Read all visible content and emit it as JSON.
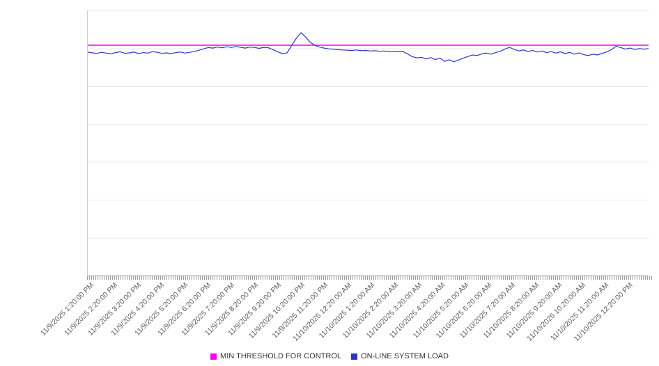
{
  "chart_data": {
    "type": "line",
    "title": "",
    "xlabel": "",
    "ylabel": "",
    "ylim": [
      0,
      100
    ],
    "grid": "horizontal",
    "legend_position": "bottom-center",
    "x_labels": [
      "11/9/2025 1:20:00 PM",
      "11/9/2025 2:20:00 PM",
      "11/9/2025 3:20:00 PM",
      "11/9/2025 4:20:00 PM",
      "11/9/2025 5:20:00 PM",
      "11/9/2025 6:20:00 PM",
      "11/9/2025 7:20:00 PM",
      "11/9/2025 8:20:00 PM",
      "11/9/2025 9:20:00 PM",
      "11/9/2025 10:20:00 PM",
      "11/9/2025 11:20:00 PM",
      "11/10/2025 12:20:00 AM",
      "11/10/2025 1:20:00 AM",
      "11/10/2025 2:20:00 AM",
      "11/10/2025 3:20:00 AM",
      "11/10/2025 4:20:00 AM",
      "11/10/2025 5:20:00 AM",
      "11/10/2025 6:20:00 AM",
      "11/10/2025 7:20:00 AM",
      "11/10/2025 8:20:00 AM",
      "11/10/2025 9:20:00 AM",
      "11/10/2025 10:20:00 AM",
      "11/10/2025 11:20:00 AM",
      "11/10/2025 12:20:00 PM"
    ],
    "series": [
      {
        "name": "MIN THRESHOLD FOR CONTROL",
        "color": "#ff00ff",
        "constant": 86.9
      },
      {
        "name": "ON-LINE SYSTEM LOAD",
        "color": "#2a36c8",
        "values": [
          84.3,
          84.0,
          83.8,
          84.2,
          83.9,
          83.6,
          84.1,
          84.4,
          83.8,
          84.0,
          84.3,
          83.7,
          84.1,
          83.9,
          84.5,
          84.2,
          83.8,
          84.0,
          83.7,
          84.1,
          84.3,
          83.9,
          84.2,
          84.5,
          85.0,
          85.5,
          86.0,
          85.8,
          86.2,
          85.9,
          86.3,
          86.0,
          86.4,
          86.1,
          85.8,
          86.2,
          86.0,
          85.7,
          86.1,
          85.9,
          85.2,
          84.4,
          83.7,
          84.0,
          86.8,
          89.5,
          91.6,
          90.0,
          88.0,
          86.8,
          86.2,
          85.8,
          85.5,
          85.4,
          85.2,
          85.1,
          85.0,
          84.9,
          85.1,
          84.8,
          84.9,
          84.7,
          84.8,
          84.6,
          84.7,
          84.5,
          84.6,
          84.4,
          84.5,
          83.6,
          82.6,
          82.1,
          82.3,
          81.7,
          82.2,
          81.5,
          82.0,
          80.8,
          81.4,
          80.6,
          81.3,
          82.0,
          82.6,
          83.2,
          83.0,
          83.6,
          83.9,
          83.5,
          84.1,
          84.6,
          85.4,
          86.1,
          85.3,
          84.7,
          85.1,
          84.5,
          84.9,
          84.3,
          84.7,
          84.1,
          84.5,
          83.9,
          84.4,
          83.7,
          84.2,
          83.5,
          84.0,
          83.3,
          83.0,
          83.5,
          83.2,
          83.8,
          84.4,
          85.2,
          86.5,
          86.0,
          85.4,
          85.8,
          85.3,
          85.6,
          85.4,
          85.6
        ]
      }
    ]
  }
}
